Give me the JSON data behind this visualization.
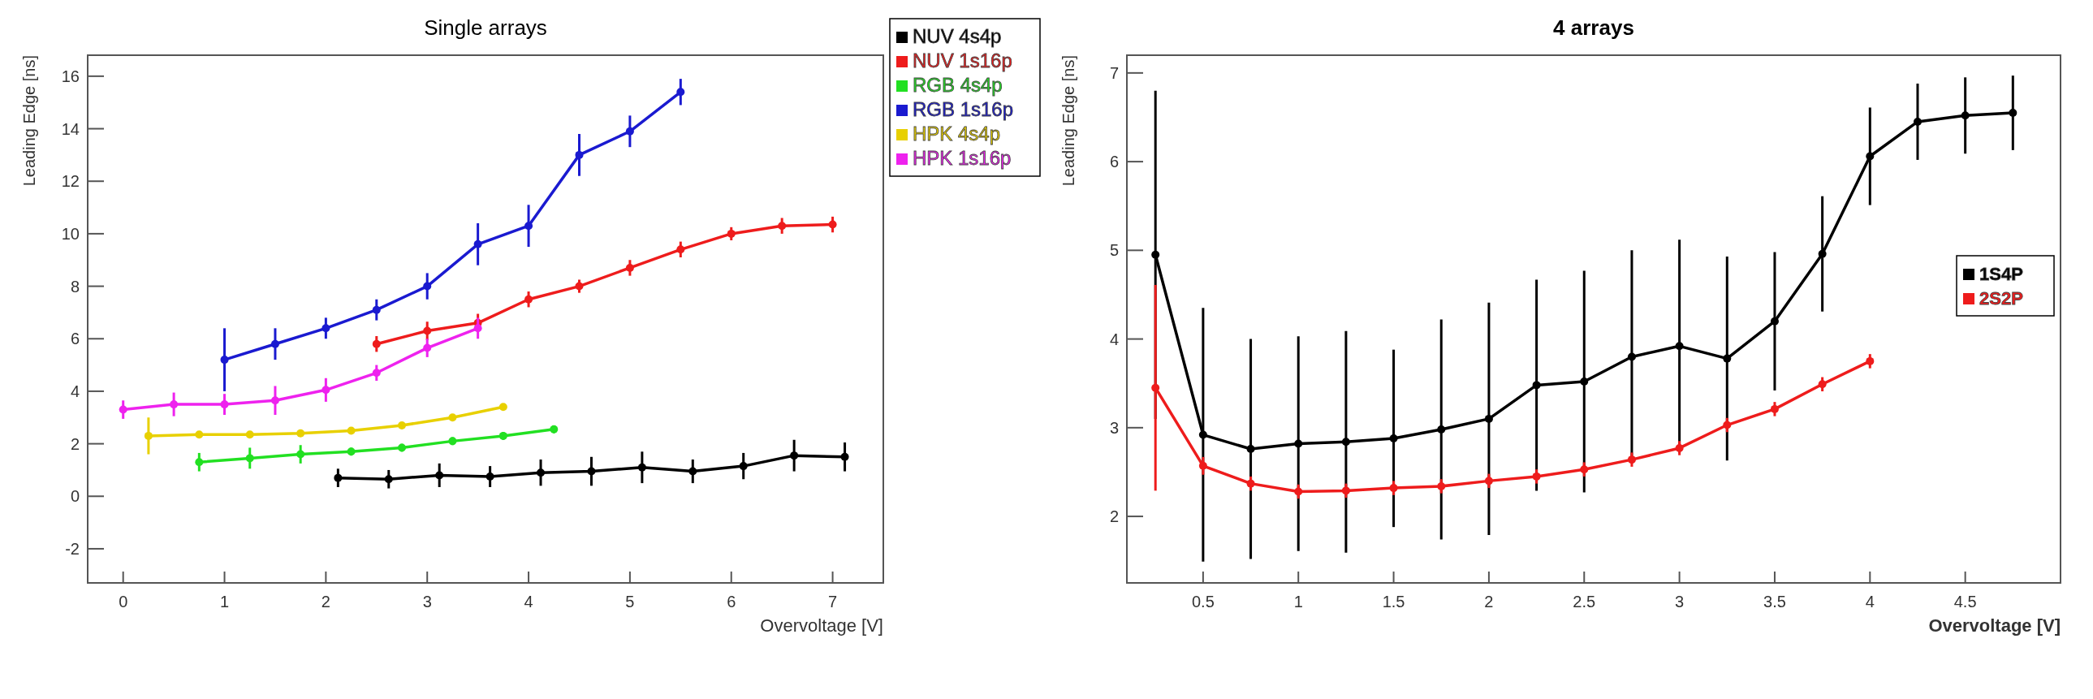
{
  "chart_data": [
    {
      "type": "line",
      "title": "Single arrays",
      "xlabel": "Overvoltage [V]",
      "ylabel": "Leading Edge [ns]",
      "xlim": [
        -0.35,
        7.5
      ],
      "ylim": [
        -3.3,
        16.8
      ],
      "xticks": [
        0,
        1,
        2,
        3,
        4,
        5,
        6,
        7
      ],
      "yticks": [
        -2,
        0,
        2,
        4,
        6,
        8,
        10,
        12,
        14,
        16
      ],
      "legend": "top right",
      "marker": "circle",
      "line_style": "solid",
      "grid": false,
      "series": [
        {
          "name": "NUV 4s4p",
          "color": "#000000",
          "x": [
            2.12,
            2.62,
            3.12,
            3.62,
            4.12,
            4.62,
            5.12,
            5.62,
            6.12,
            6.62,
            7.12
          ],
          "values": [
            0.7,
            0.65,
            0.8,
            0.75,
            0.9,
            0.95,
            1.1,
            0.95,
            1.15,
            1.55,
            1.5
          ],
          "errors": [
            0.35,
            0.35,
            0.45,
            0.4,
            0.5,
            0.55,
            0.6,
            0.45,
            0.5,
            0.6,
            0.55
          ]
        },
        {
          "name": "NUV 1s16p",
          "color": "#ee1c1c",
          "x": [
            2.5,
            3,
            3.5,
            4,
            4.5,
            5,
            5.5,
            6,
            6.5,
            7
          ],
          "values": [
            5.8,
            6.3,
            6.6,
            7.5,
            8.0,
            8.7,
            9.4,
            10.0,
            10.3,
            10.35
          ],
          "errors": [
            0.3,
            0.35,
            0.35,
            0.3,
            0.25,
            0.3,
            0.3,
            0.25,
            0.3,
            0.3
          ]
        },
        {
          "name": "RGB 4s4p",
          "color": "#22e022",
          "x": [
            0.75,
            1.25,
            1.75,
            2.25,
            2.75,
            3.25,
            3.75,
            4.25
          ],
          "values": [
            1.3,
            1.45,
            1.6,
            1.7,
            1.85,
            2.1,
            2.3,
            2.55
          ],
          "errors": [
            0.35,
            0.4,
            0.35,
            0.15,
            0.15,
            0.15,
            0.15,
            0.15
          ]
        },
        {
          "name": "RGB 1s16p",
          "color": "#1a1ad0",
          "x": [
            1,
            1.5,
            2,
            2.5,
            3,
            3.5,
            4,
            4.5,
            5,
            5.5
          ],
          "values": [
            5.2,
            5.8,
            6.4,
            7.1,
            8.0,
            9.6,
            10.3,
            13.0,
            13.9,
            15.4
          ],
          "errors": [
            1.2,
            0.6,
            0.4,
            0.4,
            0.5,
            0.8,
            0.8,
            0.8,
            0.6,
            0.5
          ]
        },
        {
          "name": "HPK 4s4p",
          "color": "#e8d000",
          "x": [
            0.25,
            0.75,
            1.25,
            1.75,
            2.25,
            2.75,
            3.25,
            3.75
          ],
          "values": [
            2.3,
            2.35,
            2.35,
            2.4,
            2.5,
            2.7,
            3.0,
            3.4
          ],
          "errors": [
            0.7,
            0.1,
            0.1,
            0.1,
            0.1,
            0.1,
            0.1,
            0.1
          ]
        },
        {
          "name": "HPK 1s16p",
          "color": "#ee22ee",
          "x": [
            0,
            0.5,
            1,
            1.5,
            2,
            2.5,
            3,
            3.5
          ],
          "values": [
            3.3,
            3.5,
            3.5,
            3.65,
            4.05,
            4.7,
            5.65,
            6.4
          ],
          "errors": [
            0.35,
            0.45,
            0.4,
            0.55,
            0.45,
            0.3,
            0.35,
            0.4
          ]
        }
      ]
    },
    {
      "type": "line",
      "title": "4 arrays",
      "xlabel": "Overvoltage [V]",
      "ylabel": "Leading Edge [ns]",
      "xlim": [
        0.1,
        5.0
      ],
      "ylim": [
        1.25,
        7.2
      ],
      "xticks": [
        0.5,
        1,
        1.5,
        2,
        2.5,
        3,
        3.5,
        4,
        4.5
      ],
      "yticks": [
        2,
        3,
        4,
        5,
        6,
        7
      ],
      "legend": "right",
      "marker": "circle",
      "line_style": "solid",
      "grid": false,
      "series": [
        {
          "name": "1S4P",
          "color": "#000000",
          "x": [
            0.25,
            0.5,
            0.75,
            1,
            1.25,
            1.5,
            1.75,
            2,
            2.25,
            2.5,
            2.75,
            3,
            3.25,
            3.5,
            3.75,
            4,
            4.25,
            4.5,
            4.75
          ],
          "values": [
            4.95,
            2.92,
            2.76,
            2.82,
            2.84,
            2.88,
            2.98,
            3.1,
            3.48,
            3.52,
            3.8,
            3.92,
            3.78,
            4.2,
            4.96,
            6.06,
            6.45,
            6.52,
            6.55
          ],
          "errors": [
            1.85,
            1.43,
            1.24,
            1.21,
            1.25,
            1.0,
            1.24,
            1.31,
            1.19,
            1.25,
            1.2,
            1.2,
            1.15,
            0.78,
            0.65,
            0.55,
            0.43,
            0.43,
            0.42
          ]
        },
        {
          "name": "2S2P",
          "color": "#ee1c1c",
          "x": [
            0.25,
            0.5,
            0.75,
            1,
            1.25,
            1.5,
            1.75,
            2,
            2.25,
            2.5,
            2.75,
            3,
            3.25,
            3.5,
            3.75,
            4
          ],
          "values": [
            3.45,
            2.57,
            2.37,
            2.28,
            2.29,
            2.32,
            2.34,
            2.4,
            2.45,
            2.53,
            2.64,
            2.77,
            3.03,
            3.21,
            3.49,
            3.75
          ],
          "errors": [
            1.16,
            0.1,
            0.08,
            0.08,
            0.08,
            0.08,
            0.08,
            0.08,
            0.08,
            0.08,
            0.08,
            0.08,
            0.08,
            0.08,
            0.08,
            0.08
          ]
        }
      ]
    }
  ]
}
